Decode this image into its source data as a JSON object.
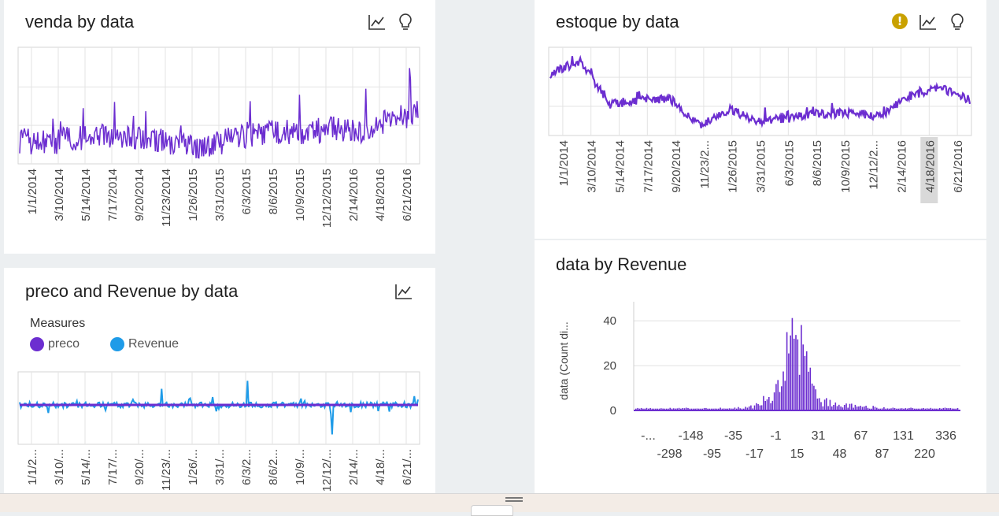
{
  "cards": {
    "venda": {
      "title": "venda by data",
      "dates": [
        "1/1/2014",
        "3/10/2014",
        "5/14/2014",
        "7/17/2014",
        "9/20/2014",
        "11/23/2014",
        "1/26/2015",
        "3/31/2015",
        "6/3/2015",
        "8/6/2015",
        "10/9/2015",
        "12/12/2015",
        "2/14/2016",
        "4/18/2016",
        "6/21/2016"
      ]
    },
    "estoque": {
      "title": "estoque by data",
      "warning_glyph": "!",
      "highlighted_tick": "4/18/2016",
      "dates": [
        "1/1/2014",
        "3/10/2014",
        "5/14/2014",
        "7/17/2014",
        "9/20/2014",
        "11/23/2...",
        "1/26/2015",
        "3/31/2015",
        "6/3/2015",
        "8/6/2015",
        "10/9/2015",
        "12/12/2...",
        "2/14/2016",
        "4/18/2016",
        "6/21/2016"
      ]
    },
    "preco": {
      "title": "preco and Revenue by data",
      "legend_title": "Measures",
      "legend": [
        {
          "label": "preco",
          "color": "#6c2ed0"
        },
        {
          "label": "Revenue",
          "color": "#1e9be8"
        }
      ],
      "dates": [
        "1/1/2...",
        "3/10/...",
        "5/14/...",
        "7/17/...",
        "9/20/...",
        "11/23/...",
        "1/26/...",
        "3/31/...",
        "6/3/2...",
        "8/6/2...",
        "10/9/...",
        "12/12/...",
        "2/14/...",
        "4/18/...",
        "6/21/..."
      ]
    },
    "revenue": {
      "title": "data by Revenue",
      "ylabel": "data (Count di..."
    }
  },
  "colors": {
    "purple": "#6c2ed0",
    "blue": "#1e9be8",
    "warning": "#c9a100"
  },
  "icons": [
    "trend-line-icon",
    "lightbulb-icon",
    "warning-icon"
  ],
  "chart_data": [
    {
      "type": "line",
      "title": "venda by data",
      "x": [
        "1/1/2014",
        "3/10/2014",
        "5/14/2014",
        "7/17/2014",
        "9/20/2014",
        "11/23/2014",
        "1/26/2015",
        "3/31/2015",
        "6/3/2015",
        "8/6/2015",
        "10/9/2015",
        "12/12/2015",
        "2/14/2016",
        "4/18/2016",
        "6/21/2016"
      ],
      "series": [
        {
          "values": [
            20,
            18,
            22,
            25,
            24,
            20,
            14,
            18,
            25,
            28,
            26,
            30,
            26,
            38,
            44
          ]
        }
      ],
      "ylim": [
        0,
        100
      ],
      "grid": true,
      "legend": "none"
    },
    {
      "type": "line",
      "title": "estoque by data",
      "x": [
        "1/1/2014",
        "3/10/2014",
        "5/14/2014",
        "7/17/2014",
        "9/20/2014",
        "11/23/2...",
        "1/26/2015",
        "3/31/2015",
        "6/3/2015",
        "8/6/2015",
        "10/9/2015",
        "12/12/2...",
        "2/14/2016",
        "4/18/2016",
        "6/21/2016"
      ],
      "series": [
        {
          "values": [
            70,
            85,
            35,
            40,
            42,
            10,
            30,
            15,
            20,
            25,
            25,
            22,
            45,
            55,
            40
          ]
        }
      ],
      "ylim": [
        0,
        100
      ],
      "grid": true,
      "legend": "none"
    },
    {
      "type": "line",
      "title": "preco and Revenue by data",
      "x": [
        "1/1/2...",
        "3/10/...",
        "5/14/...",
        "7/17/...",
        "9/20/...",
        "11/23/...",
        "1/26/...",
        "3/31/...",
        "6/3/2...",
        "8/6/2...",
        "10/9/...",
        "12/12/...",
        "2/14/...",
        "4/18/...",
        "6/21/..."
      ],
      "series": [
        {
          "name": "preco",
          "values": [
            0,
            0,
            0,
            0,
            0,
            0,
            0,
            0,
            0,
            0,
            0,
            0,
            0,
            0,
            0
          ]
        },
        {
          "name": "Revenue",
          "values": [
            2,
            -6,
            3,
            -4,
            4,
            12,
            5,
            -3,
            18,
            2,
            3,
            -22,
            2,
            -5,
            4
          ]
        }
      ],
      "legend": "top-left",
      "grid": true
    },
    {
      "type": "bar",
      "title": "data by Revenue",
      "categories": [
        "-...",
        "-298",
        "-148",
        "-95",
        "-35",
        "-17",
        "-1",
        "15",
        "31",
        "48",
        "67",
        "87",
        "131",
        "220",
        "336"
      ],
      "values": [
        1,
        1,
        1,
        1,
        1,
        2,
        8,
        44,
        5,
        3,
        2,
        1,
        1,
        1,
        1
      ],
      "ylabel": "data (Count di...",
      "yticks": [
        0,
        20,
        40
      ],
      "ylim": [
        0,
        45
      ],
      "grid": true
    }
  ]
}
